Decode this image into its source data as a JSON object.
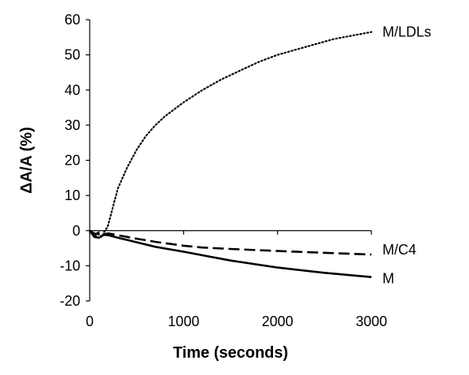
{
  "chart_data": {
    "type": "line",
    "title": "",
    "xlabel": "Time (seconds)",
    "ylabel": "ΔA/A (%)",
    "xlim": [
      0,
      3000
    ],
    "ylim": [
      -20,
      60
    ],
    "xticks": [
      "0",
      "1000",
      "2000",
      "3000"
    ],
    "yticks": [
      "-20",
      "-10",
      "0",
      "10",
      "20",
      "30",
      "40",
      "50",
      "60"
    ],
    "grid": false,
    "legend": "none (series labeled at line ends)",
    "series": [
      {
        "name": "M/LDLs",
        "style": "dotted",
        "color": "#000000",
        "x": [
          0,
          60,
          100,
          130,
          160,
          190,
          220,
          260,
          300,
          400,
          500,
          600,
          700,
          800,
          900,
          1000,
          1200,
          1400,
          1600,
          1800,
          2000,
          2200,
          2400,
          2600,
          2800,
          3000
        ],
        "y": [
          0,
          -1.5,
          -1,
          -1.8,
          0,
          1,
          4,
          8,
          12,
          18,
          23,
          27,
          30,
          32.5,
          34.5,
          36.5,
          40,
          43,
          45.5,
          48,
          50,
          51.5,
          53,
          54.5,
          55.5,
          56.5
        ]
      },
      {
        "name": "M/C4",
        "style": "dashed",
        "color": "#000000",
        "x": [
          0,
          60,
          100,
          150,
          200,
          300,
          500,
          700,
          1000,
          1200,
          1500,
          2000,
          2500,
          3000
        ],
        "y": [
          0,
          -1,
          -0.5,
          -1,
          -0.8,
          -1.3,
          -2.3,
          -3.2,
          -4.3,
          -4.8,
          -5.2,
          -5.8,
          -6.3,
          -6.8
        ]
      },
      {
        "name": "M",
        "style": "solid",
        "color": "#000000",
        "x": [
          0,
          50,
          100,
          150,
          200,
          300,
          500,
          700,
          1000,
          1200,
          1500,
          2000,
          2500,
          3000
        ],
        "y": [
          0,
          -1.8,
          -2,
          -1.2,
          -1.3,
          -2,
          -3.3,
          -4.6,
          -6,
          -7,
          -8.5,
          -10.5,
          -12,
          -13.2
        ]
      }
    ]
  }
}
